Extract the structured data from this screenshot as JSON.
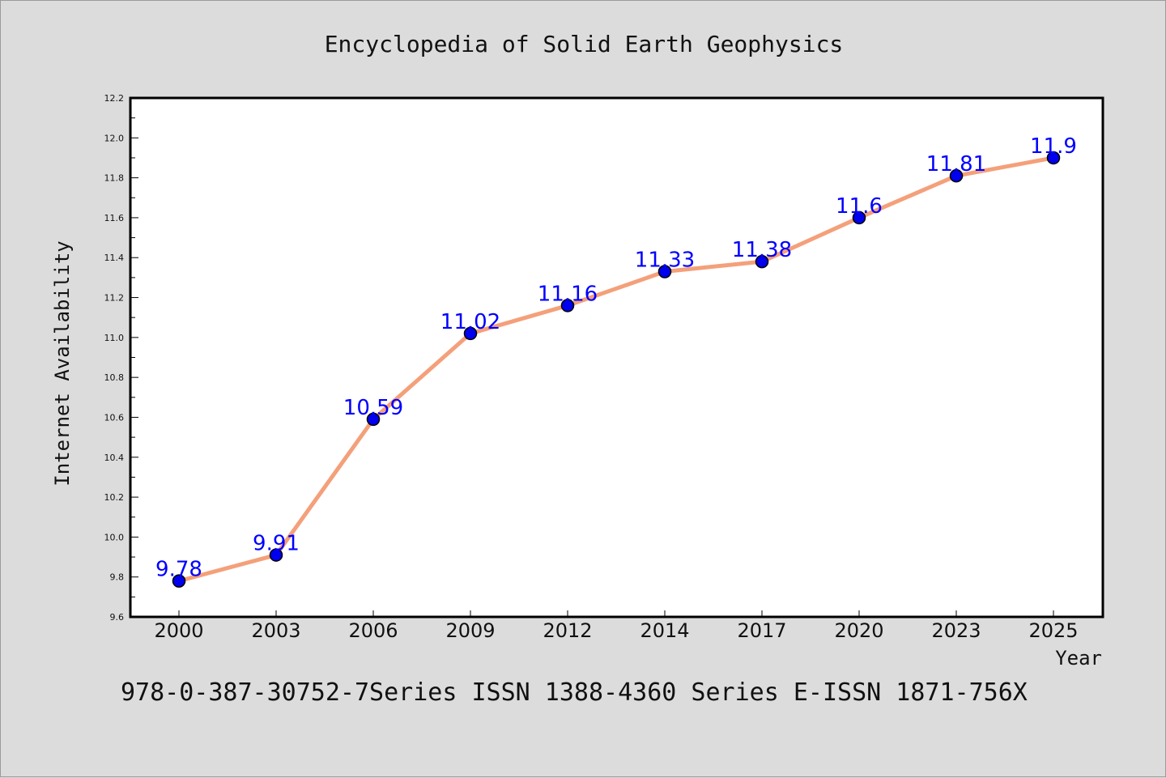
{
  "chart_data": {
    "type": "line",
    "title": "Encyclopedia of Solid Earth Geophysics",
    "xlabel": "Year",
    "ylabel": "Internet Availability",
    "categories": [
      "2000",
      "2003",
      "2006",
      "2009",
      "2012",
      "2014",
      "2017",
      "2020",
      "2023",
      "2025"
    ],
    "series": [
      {
        "values": [
          9.78,
          9.91,
          10.59,
          11.02,
          11.16,
          11.33,
          11.38,
          11.6,
          11.81,
          11.9
        ],
        "labels": [
          "9.78",
          "9.91",
          "10.59",
          "11.02",
          "11.16",
          "11.33",
          "11.38",
          "11.6",
          "11.81",
          "11.9"
        ],
        "line_color": "#f4a07a",
        "marker_color": "#0000ee"
      }
    ],
    "ylim": [
      9.6,
      12.2
    ],
    "yticks": [
      "9.6",
      "9.8",
      "10.0",
      "10.2",
      "10.4",
      "10.6",
      "10.8",
      "11.0",
      "11.2",
      "11.4",
      "11.6",
      "11.8",
      "12.0",
      "12.2"
    ],
    "grid": false,
    "footer": "978-0-387-30752-7Series ISSN 1388-4360 Series E-ISSN 1871-756X"
  },
  "colors": {
    "background": "#dcdcdc",
    "plot_background": "#ffffff",
    "label_color": "#0000ff"
  }
}
